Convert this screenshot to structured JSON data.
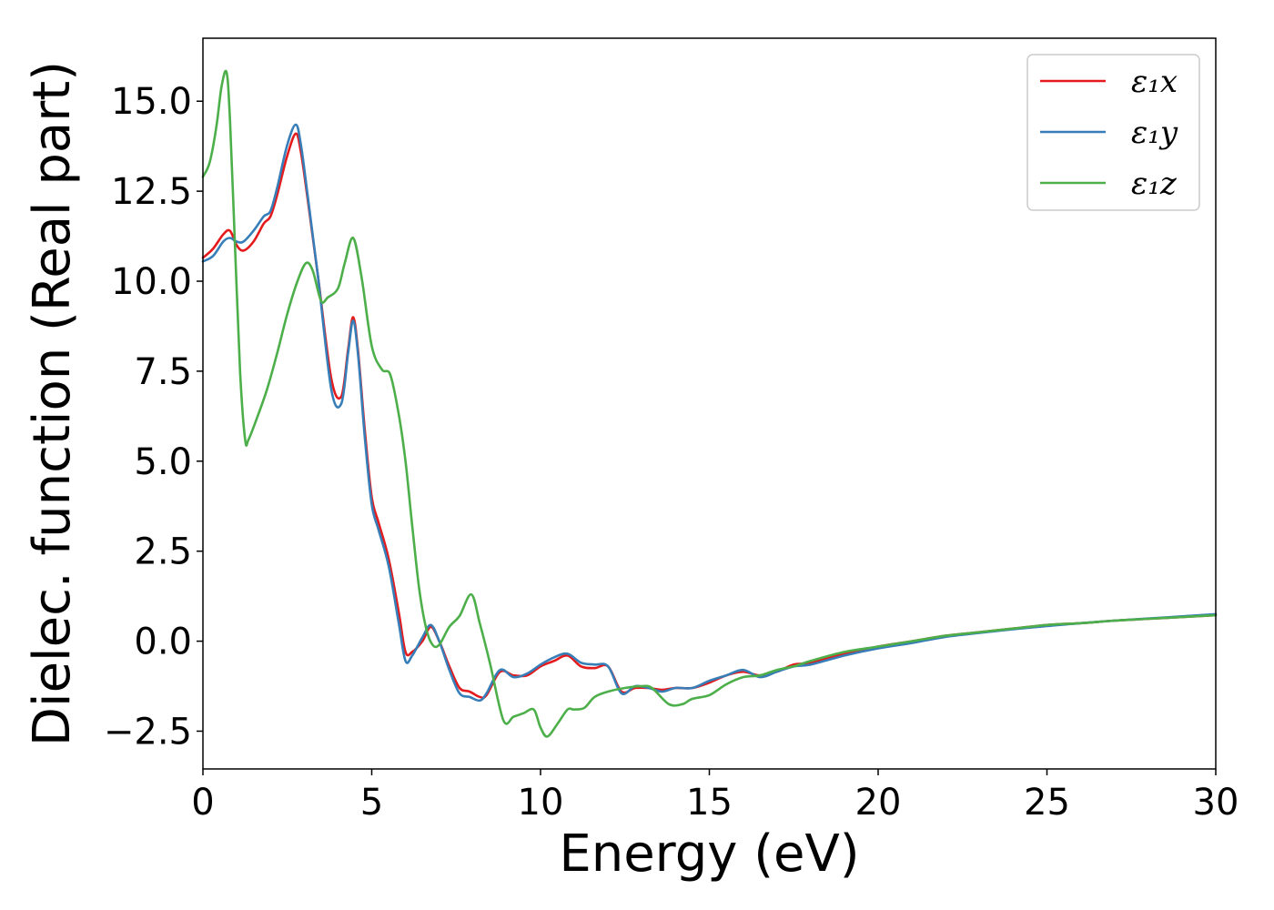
{
  "chart_data": {
    "type": "line",
    "xlabel": "Energy (eV)",
    "ylabel": "Dielec. function (Real part)",
    "xlim": [
      0,
      30
    ],
    "ylim": [
      -3.55,
      16.75
    ],
    "xticks": [
      0,
      5,
      10,
      15,
      20,
      25,
      30
    ],
    "xtick_labels": [
      "0",
      "5",
      "10",
      "15",
      "20",
      "25",
      "30"
    ],
    "yticks": [
      -2.5,
      0.0,
      2.5,
      5.0,
      7.5,
      10.0,
      12.5,
      15.0
    ],
    "ytick_labels": [
      "−2.5",
      "0.0",
      "2.5",
      "5.0",
      "7.5",
      "10.0",
      "12.5",
      "15.0"
    ],
    "grid": false,
    "legend_position": "top-right",
    "series": [
      {
        "name": "ε₁x",
        "color": "#e41a1c",
        "x": [
          0,
          0.3,
          0.6,
          0.8,
          1.0,
          1.2,
          1.5,
          1.8,
          2.0,
          2.2,
          2.5,
          2.75,
          2.9,
          3.1,
          3.4,
          3.8,
          4.1,
          4.3,
          4.45,
          4.6,
          4.8,
          5.0,
          5.2,
          5.5,
          5.8,
          6.0,
          6.2,
          6.5,
          6.75,
          7.0,
          7.3,
          7.6,
          7.9,
          8.2,
          8.4,
          8.8,
          9.2,
          9.6,
          10.0,
          10.4,
          10.8,
          11.2,
          11.6,
          12.0,
          12.4,
          12.8,
          13.2,
          13.6,
          14.0,
          14.5,
          15.0,
          15.5,
          16.0,
          16.5,
          17.0,
          17.5,
          18.0,
          19.0,
          20.0,
          21.0,
          22.0,
          23.0,
          24.0,
          25.0,
          26.0,
          27.0,
          28.0,
          29.0,
          30.0
        ],
        "y": [
          10.65,
          10.9,
          11.3,
          11.4,
          11.0,
          10.85,
          11.1,
          11.6,
          11.8,
          12.4,
          13.5,
          14.1,
          13.6,
          12.3,
          10.2,
          7.3,
          6.8,
          8.1,
          9.0,
          8.0,
          5.8,
          4.0,
          3.3,
          2.3,
          0.8,
          -0.3,
          -0.3,
          0.0,
          0.4,
          0.0,
          -0.7,
          -1.3,
          -1.4,
          -1.55,
          -1.5,
          -0.85,
          -0.95,
          -0.95,
          -0.7,
          -0.55,
          -0.4,
          -0.7,
          -0.75,
          -0.7,
          -1.4,
          -1.3,
          -1.3,
          -1.35,
          -1.3,
          -1.3,
          -1.15,
          -0.95,
          -0.85,
          -0.95,
          -0.85,
          -0.65,
          -0.6,
          -0.35,
          -0.15,
          0.0,
          0.15,
          0.25,
          0.35,
          0.45,
          0.5,
          0.57,
          0.62,
          0.67,
          0.72
        ]
      },
      {
        "name": "ε₁y",
        "color": "#377eb8",
        "x": [
          0,
          0.3,
          0.6,
          0.8,
          1.0,
          1.2,
          1.5,
          1.8,
          2.0,
          2.2,
          2.5,
          2.75,
          2.9,
          3.1,
          3.4,
          3.8,
          4.1,
          4.3,
          4.45,
          4.6,
          4.8,
          5.0,
          5.2,
          5.5,
          5.8,
          6.0,
          6.2,
          6.5,
          6.75,
          7.0,
          7.3,
          7.6,
          7.9,
          8.2,
          8.4,
          8.8,
          9.2,
          9.6,
          10.0,
          10.4,
          10.8,
          11.2,
          11.6,
          12.0,
          12.4,
          12.8,
          13.2,
          13.6,
          14.0,
          14.5,
          15.0,
          15.5,
          16.0,
          16.5,
          17.0,
          17.5,
          18.0,
          19.0,
          20.0,
          21.0,
          22.0,
          23.0,
          24.0,
          25.0,
          26.0,
          27.0,
          28.0,
          29.0,
          30.0
        ],
        "y": [
          10.55,
          10.7,
          11.1,
          11.2,
          11.1,
          11.1,
          11.4,
          11.8,
          11.95,
          12.6,
          13.8,
          14.35,
          13.8,
          12.4,
          10.2,
          7.0,
          6.6,
          8.0,
          8.9,
          7.9,
          5.6,
          3.8,
          3.1,
          2.1,
          0.5,
          -0.55,
          -0.4,
          0.1,
          0.45,
          0.0,
          -0.8,
          -1.45,
          -1.55,
          -1.65,
          -1.45,
          -0.8,
          -1.0,
          -0.9,
          -0.65,
          -0.45,
          -0.35,
          -0.6,
          -0.65,
          -0.7,
          -1.45,
          -1.25,
          -1.3,
          -1.4,
          -1.3,
          -1.3,
          -1.1,
          -0.95,
          -0.8,
          -1.0,
          -0.85,
          -0.7,
          -0.65,
          -0.4,
          -0.2,
          -0.05,
          0.12,
          0.23,
          0.33,
          0.42,
          0.5,
          0.57,
          0.63,
          0.69,
          0.75
        ]
      },
      {
        "name": "ε₁z",
        "color": "#4daf4a",
        "x": [
          0,
          0.2,
          0.4,
          0.55,
          0.7,
          0.8,
          0.95,
          1.1,
          1.25,
          1.35,
          1.6,
          1.9,
          2.2,
          2.5,
          2.8,
          3.05,
          3.25,
          3.5,
          3.7,
          4.0,
          4.2,
          4.45,
          4.7,
          5.0,
          5.3,
          5.55,
          5.8,
          6.0,
          6.2,
          6.4,
          6.6,
          6.8,
          7.0,
          7.3,
          7.6,
          7.95,
          8.2,
          8.5,
          8.9,
          9.2,
          9.5,
          9.8,
          10.0,
          10.2,
          10.5,
          10.8,
          11.0,
          11.3,
          11.6,
          12.0,
          12.5,
          13.0,
          13.3,
          13.8,
          14.2,
          14.5,
          15.0,
          15.5,
          16.0,
          16.5,
          17.0,
          17.5,
          18.0,
          19.0,
          20.0,
          21.0,
          22.0,
          23.0,
          24.0,
          25.0,
          26.0,
          27.0,
          28.0,
          29.0,
          30.0
        ],
        "y": [
          12.9,
          13.3,
          14.3,
          15.4,
          15.8,
          14.5,
          11.0,
          7.5,
          5.6,
          5.6,
          6.2,
          7.0,
          8.0,
          9.1,
          10.0,
          10.5,
          10.3,
          9.45,
          9.55,
          9.8,
          10.5,
          11.2,
          10.1,
          8.2,
          7.55,
          7.4,
          6.3,
          5.0,
          3.2,
          1.5,
          0.4,
          -0.1,
          -0.1,
          0.4,
          0.7,
          1.3,
          0.5,
          -0.6,
          -2.2,
          -2.1,
          -2.0,
          -1.9,
          -2.4,
          -2.65,
          -2.3,
          -1.9,
          -1.9,
          -1.85,
          -1.55,
          -1.4,
          -1.3,
          -1.25,
          -1.3,
          -1.75,
          -1.75,
          -1.6,
          -1.5,
          -1.2,
          -1.0,
          -0.95,
          -0.8,
          -0.7,
          -0.55,
          -0.3,
          -0.15,
          0.0,
          0.15,
          0.25,
          0.35,
          0.45,
          0.5,
          0.57,
          0.62,
          0.67,
          0.72
        ]
      }
    ]
  }
}
